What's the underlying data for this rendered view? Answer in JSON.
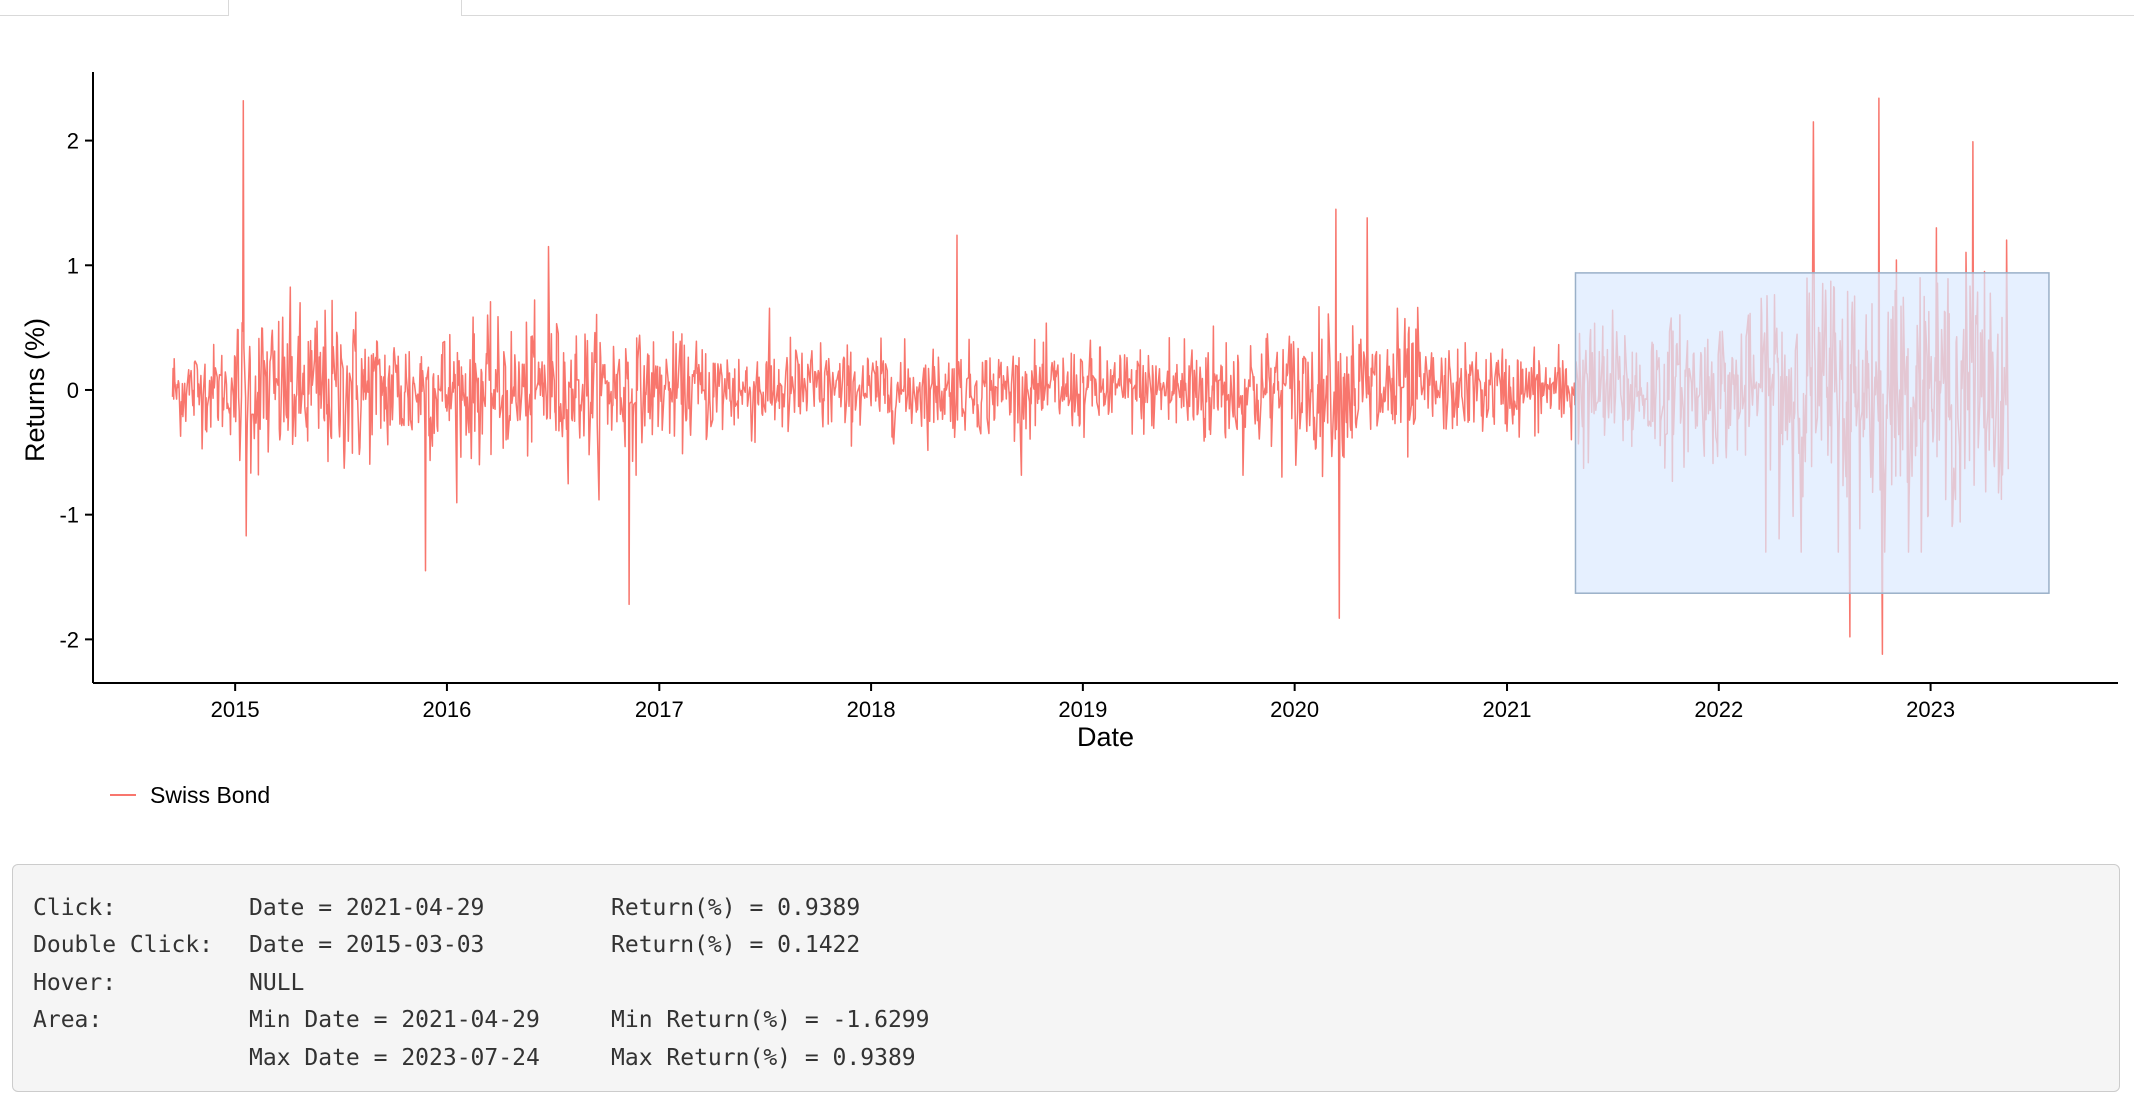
{
  "chart_data": {
    "type": "line",
    "xlabel": "Date",
    "ylabel": "Returns (%)",
    "x_ticks": [
      "2015",
      "2016",
      "2017",
      "2018",
      "2019",
      "2020",
      "2021",
      "2022",
      "2023"
    ],
    "y_ticks": [
      "2",
      "1",
      "0",
      "-1",
      "-2"
    ],
    "xlim": [
      "2014-05-01",
      "2023-11-20"
    ],
    "ylim": [
      -2.35,
      2.55
    ],
    "grid": false,
    "legend_position": "bottom-left",
    "series": [
      {
        "name": "Swiss Bond",
        "color": "#f8766d",
        "date_range": [
          "2014-09-15",
          "2023-05-15"
        ],
        "notable_points": [
          {
            "x": "2015-01-15",
            "y": 2.32
          },
          {
            "x": "2015-01-20",
            "y": -1.17
          },
          {
            "x": "2015-11-25",
            "y": -1.45
          },
          {
            "x": "2016-06-24",
            "y": 1.15
          },
          {
            "x": "2016-11-10",
            "y": -1.72
          },
          {
            "x": "2018-05-29",
            "y": 1.24
          },
          {
            "x": "2020-03-12",
            "y": 1.45
          },
          {
            "x": "2020-03-18",
            "y": -1.83
          },
          {
            "x": "2020-05-05",
            "y": 1.38
          },
          {
            "x": "2022-06-13",
            "y": 2.15
          },
          {
            "x": "2022-08-15",
            "y": -1.98
          },
          {
            "x": "2022-10-04",
            "y": 2.34
          },
          {
            "x": "2022-10-10",
            "y": -2.12
          },
          {
            "x": "2023-03-15",
            "y": 1.99
          }
        ]
      }
    ],
    "brush": {
      "x_min": "2021-04-29",
      "x_max": "2023-07-24",
      "y_min": -1.6299,
      "y_max": 0.9389,
      "fill": "#dbeaff",
      "stroke": "#9ab0c8"
    }
  },
  "legend": {
    "label": "Swiss Bond"
  },
  "info": [
    {
      "label": "Click:",
      "c2": "Date = 2021-04-29",
      "c3": "Return(%) = 0.9389"
    },
    {
      "label": "Double Click:",
      "c2": "Date = 2015-03-03",
      "c3": "Return(%) = 0.1422"
    },
    {
      "label": "Hover:",
      "c2": "NULL",
      "c3": ""
    },
    {
      "label": "Area:",
      "c2": "Min Date = 2021-04-29",
      "c3": "Min Return(%) = -1.6299"
    },
    {
      "label": "",
      "c2": "Max Date = 2023-07-24",
      "c3": "Max Return(%) = 0.9389"
    }
  ]
}
